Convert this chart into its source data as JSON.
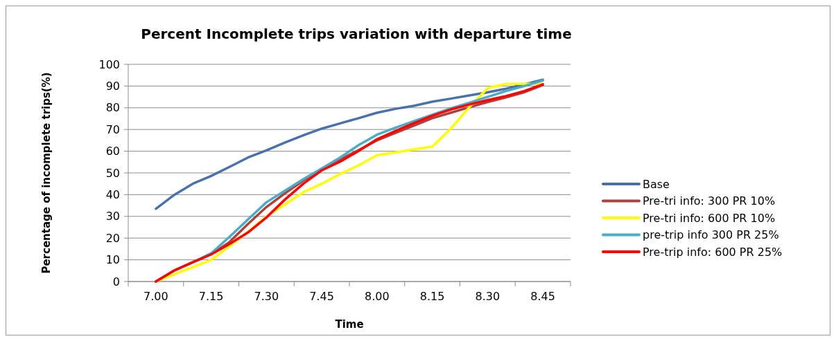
{
  "chart_data": {
    "type": "line",
    "title": "Percent  Incomplete trips  variation with departure time",
    "xlabel": "Time",
    "ylabel": "Percentage of incomplete trips(%)",
    "categories": [
      "7.00",
      null,
      null,
      "7.15",
      null,
      null,
      "7.30",
      null,
      null,
      "7.45",
      null,
      null,
      "8.00",
      null,
      null,
      "8.15",
      null,
      null,
      "8.30",
      null,
      null,
      "8.45"
    ],
    "ylim": [
      0,
      100
    ],
    "yticks": [
      0,
      10,
      20,
      30,
      40,
      50,
      60,
      70,
      80,
      90,
      100
    ],
    "grid": "y",
    "legend": "right",
    "marker": "none",
    "line_style": "solid",
    "series": [
      {
        "name": "Base",
        "color": "#4a72a8",
        "values": [
          33.5,
          39.9,
          45,
          48.6,
          52.8,
          57.1,
          60.4,
          64,
          67.3,
          70.4,
          72.8,
          75.2,
          77.7,
          79.5,
          80.9,
          82.8,
          84.2,
          85.7,
          87.1,
          88.8,
          90.8,
          92.9
        ]
      },
      {
        "name": "Pre-tri info: 300 PR 10%",
        "color": "#b0403c",
        "values": [
          0,
          5.1,
          8.9,
          12.5,
          18.2,
          26.5,
          34.3,
          40.6,
          46.5,
          51.7,
          56.2,
          60.5,
          65,
          68.4,
          71.8,
          75.2,
          77.7,
          80.2,
          82.6,
          84.8,
          87.2,
          90.5
        ]
      },
      {
        "name": "Pre-tri info: 600 PR 10%",
        "color": "#ffff00",
        "values": [
          0,
          3.3,
          6.6,
          9.9,
          16.3,
          22.9,
          29.9,
          35.5,
          41.1,
          45,
          49.5,
          53.5,
          58.1,
          59.5,
          60.8,
          62.1,
          70.3,
          80.2,
          89,
          91,
          91,
          91
        ]
      },
      {
        "name": "pre-trip info 300 PR 25%",
        "color": "#4bacc6",
        "values": [
          0,
          5,
          8.8,
          13,
          20.6,
          28.6,
          36.5,
          41.8,
          47.1,
          52.1,
          57.1,
          62.8,
          67.6,
          70.8,
          73.8,
          76.8,
          79.7,
          82.3,
          85,
          87.7,
          90,
          92.6
        ]
      },
      {
        "name": "Pre-trip info: 600 PR 25%",
        "color": "#ff0000",
        "values": [
          0,
          5.1,
          8.9,
          12.5,
          17.3,
          22.6,
          29.5,
          37.7,
          45,
          51.2,
          55.2,
          60.1,
          65.5,
          69.3,
          72.9,
          76.3,
          79.2,
          81.5,
          83.5,
          85.4,
          87.7,
          90.8
        ]
      }
    ]
  }
}
